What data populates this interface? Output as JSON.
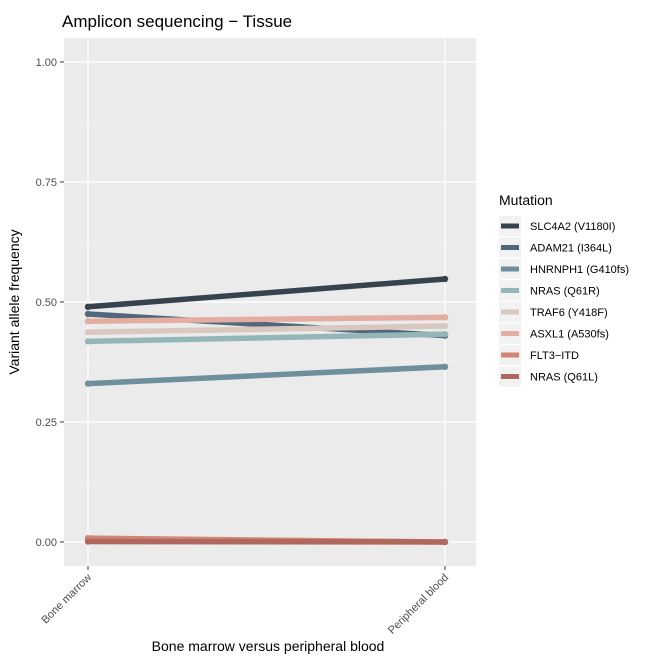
{
  "chart_data": {
    "type": "line",
    "title": "Amplicon sequencing − Tissue",
    "xlabel": "Bone marrow versus peripheral blood",
    "ylabel": "Variant allele frequency",
    "categories": [
      "Bone marrow",
      "Peripheral blood"
    ],
    "ylim": [
      -0.05,
      1.05
    ],
    "yticks": [
      0.0,
      0.25,
      0.5,
      0.75,
      1.0
    ],
    "ytick_labels": [
      "0.00",
      "0.25",
      "0.50",
      "0.75",
      "1.00"
    ],
    "grid": true,
    "panel_background": "#ebebeb",
    "legend": {
      "title": "Mutation",
      "position": "right"
    },
    "series": [
      {
        "name": "SLC4A2 (V1180I)",
        "color": "#36434f",
        "values": [
          0.49,
          0.548
        ]
      },
      {
        "name": "ADAM21 (I364L)",
        "color": "#52687a",
        "values": [
          0.475,
          0.43
        ]
      },
      {
        "name": "HNRNPH1 (G410fs)",
        "color": "#6e8f9b",
        "values": [
          0.33,
          0.365
        ]
      },
      {
        "name": "NRAS (Q61R)",
        "color": "#94b6b9",
        "values": [
          0.418,
          0.433
        ]
      },
      {
        "name": "TRAF6 (Y418F)",
        "color": "#d8c8bf",
        "values": [
          0.437,
          0.45
        ]
      },
      {
        "name": "ASXL1 (A530fs)",
        "color": "#e3ada2",
        "values": [
          0.46,
          0.468
        ]
      },
      {
        "name": "FLT3−ITD",
        "color": "#cf8674",
        "values": [
          0.008,
          0.0
        ]
      },
      {
        "name": "NRAS (Q61L)",
        "color": "#b0675e",
        "values": [
          0.001,
          0.0
        ]
      }
    ]
  }
}
